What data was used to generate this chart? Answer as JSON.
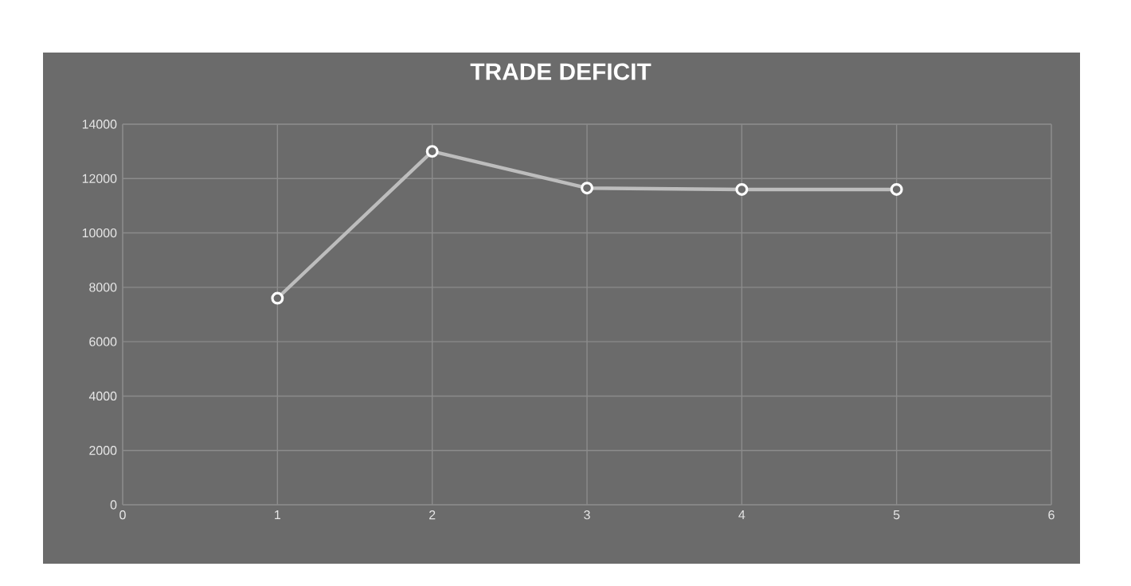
{
  "chart_data": {
    "type": "line",
    "title": "TRADE DEFICIT",
    "x": [
      1,
      2,
      3,
      4,
      5
    ],
    "series": [
      {
        "color": "#bdbdbd",
        "values": [
          7600,
          13000,
          11650,
          11600,
          11600
        ]
      }
    ],
    "xlim": [
      0,
      6
    ],
    "xticks": [
      0,
      1,
      2,
      3,
      4,
      5,
      6
    ],
    "ylim": [
      0,
      14000
    ],
    "yticks": [
      0,
      2000,
      4000,
      6000,
      8000,
      10000,
      12000,
      14000
    ],
    "grid": true,
    "marker": "circle",
    "line_style": "solid"
  }
}
